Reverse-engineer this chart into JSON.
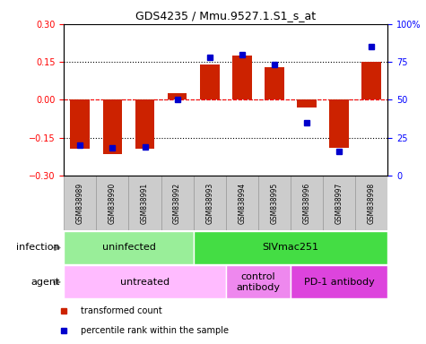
{
  "title": "GDS4235 / Mmu.9527.1.S1_s_at",
  "samples": [
    "GSM838989",
    "GSM838990",
    "GSM838991",
    "GSM838992",
    "GSM838993",
    "GSM838994",
    "GSM838995",
    "GSM838996",
    "GSM838997",
    "GSM838998"
  ],
  "transformed_count": [
    -0.195,
    -0.215,
    -0.195,
    0.025,
    0.14,
    0.175,
    0.13,
    -0.03,
    -0.19,
    0.15
  ],
  "percentile_rank": [
    20,
    18,
    19,
    50,
    78,
    80,
    73,
    35,
    16,
    85
  ],
  "ylim_left": [
    -0.3,
    0.3
  ],
  "ylim_right": [
    0,
    100
  ],
  "yticks_left": [
    -0.3,
    -0.15,
    0,
    0.15,
    0.3
  ],
  "yticks_right": [
    0,
    25,
    50,
    75,
    100
  ],
  "bar_color": "#cc2200",
  "dot_color": "#0000cc",
  "grid_values": [
    -0.15,
    0,
    0.15
  ],
  "infection_groups": [
    {
      "label": "uninfected",
      "start": 0,
      "end": 4,
      "color": "#99ee99"
    },
    {
      "label": "SIVmac251",
      "start": 4,
      "end": 10,
      "color": "#44dd44"
    }
  ],
  "agent_groups": [
    {
      "label": "untreated",
      "start": 0,
      "end": 5,
      "color": "#ffbbff"
    },
    {
      "label": "control\nantibody",
      "start": 5,
      "end": 7,
      "color": "#ee88ee"
    },
    {
      "label": "PD-1 antibody",
      "start": 7,
      "end": 10,
      "color": "#dd44dd"
    }
  ],
  "infection_label": "infection",
  "agent_label": "agent",
  "legend_items": [
    {
      "label": "transformed count",
      "color": "#cc2200"
    },
    {
      "label": "percentile rank within the sample",
      "color": "#0000cc"
    }
  ],
  "sample_cell_color": "#cccccc",
  "sample_cell_edge": "#999999"
}
